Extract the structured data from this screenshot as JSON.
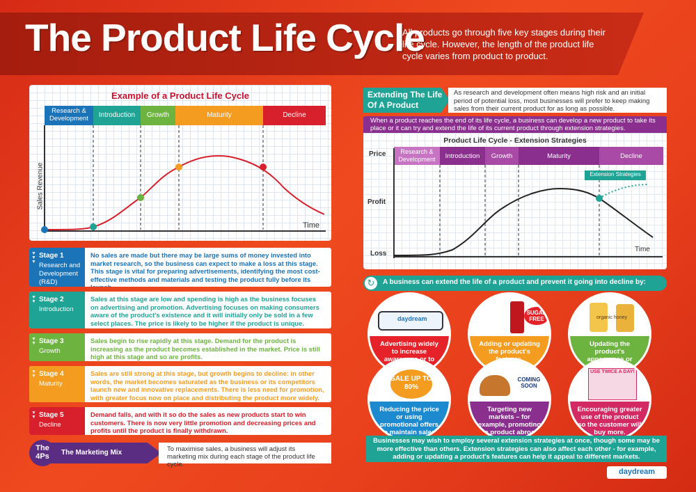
{
  "header": {
    "title": "The Product Life Cycle",
    "intro": "All products go through five key stages during their life cycle. However, the length of the product life cycle varies from product to product."
  },
  "example_chart": {
    "title": "Example of a Product Life Cycle",
    "stages": [
      "Research & Development",
      "Introduction",
      "Growth",
      "Maturity",
      "Decline"
    ],
    "ylabel": "Sales Revenue",
    "xlabel": "Time"
  },
  "stages": [
    {
      "label": "Stage 1",
      "name": "Research and Development (R&D)",
      "text": "No sales are made but there may be large sums of money invested into market research, so the business can expect to make a loss at this stage. This stage is vital for preparing advertisements, identifying the most cost-effective methods and materials and testing the product fully before its launch.",
      "color": "#1b73b8"
    },
    {
      "label": "Stage 2",
      "name": "Introduction",
      "text": "Sales at this stage are low and spending is high as the business focuses on advertising and promotion. Advertising focuses on making consumers aware of the product's existence and it will initially only be sold in a few select places. The price is likely to be higher if the product is unique.",
      "color": "#1fa394"
    },
    {
      "label": "Stage 3",
      "name": "Growth",
      "text": "Sales begin to rise rapidly at this stage. Demand for the product is increasing as the product becomes established in the market. Price is still high at this stage and so are profits.",
      "color": "#6db33f"
    },
    {
      "label": "Stage 4",
      "name": "Maturity",
      "text": "Sales are still strong at this stage, but growth begins to decline: in other words, the market becomes saturated as the business or its competitors launch new and innovative replacements. There is less need for promotion, with greater focus now on place and distributing the product more widely.",
      "color": "#f39c1f"
    },
    {
      "label": "Stage 5",
      "name": "Decline",
      "text": "Demand falls, and with it so do the sales as new products start to win customers. There is now very little promotion and decreasing prices and profits until the product is finally withdrawn.",
      "color": "#d7202b"
    }
  ],
  "marketing_mix": {
    "badge": "The 4Ps",
    "label": "The Marketing Mix",
    "text": "To maximise sales, a business will adjust its marketing mix during each stage of the product life cycle."
  },
  "extending": {
    "title": "Extending The Life Of A Product",
    "text": "As research and development often means high risk and an initial period of potential loss, most businesses will prefer to keep making sales from their current product for as long as possible.",
    "purple_text": "When a product reaches the end of its life cycle, a business can develop a new product to take its place or it can try and extend the life of its current product through extension strategies."
  },
  "ext_chart": {
    "title": "Product Life Cycle - Extension Strategies",
    "stages": [
      "Research & Development",
      "Introduction",
      "Growth",
      "Maturity",
      "Decline"
    ],
    "y_labels": [
      "Price",
      "Profit",
      "Loss"
    ],
    "xlabel": "Time",
    "callout": "Extension Strategies"
  },
  "strategies": {
    "header": "A business can extend the life of a product and prevent it going into decline by:",
    "items": [
      {
        "caption": "Advertising widely to increase awareness or to appeal to a new market.",
        "color": "#e5212a",
        "img_text": "daydream"
      },
      {
        "caption": "Adding or updating the product's features.",
        "color": "#f39c1f",
        "img_text": "SUGAR FREE"
      },
      {
        "caption": "Updating the product's appearance or packaging.",
        "color": "#6db33f",
        "img_text": "organic honey"
      },
      {
        "caption": "Reducing the price or using promotional offers to maintain sales.",
        "color": "#1d8ad0",
        "img_text": "SALE UP TO 80%"
      },
      {
        "caption": "Targeting new markets – for example, promoting the product abroad.",
        "color": "#8b2f8f",
        "img_text": "COMING SOON"
      },
      {
        "caption": "Encouraging greater use of the product so the customer will buy more.",
        "color": "#d42a63",
        "img_text": "USE TWICE A DAY!"
      }
    ],
    "footer": "Businesses may wish to employ several extension strategies at once, though some may be more effective than others. Extension strategies can also affect each other - for example, adding or updating a product's features can help it appeal to different markets."
  },
  "brand": "daydream"
}
